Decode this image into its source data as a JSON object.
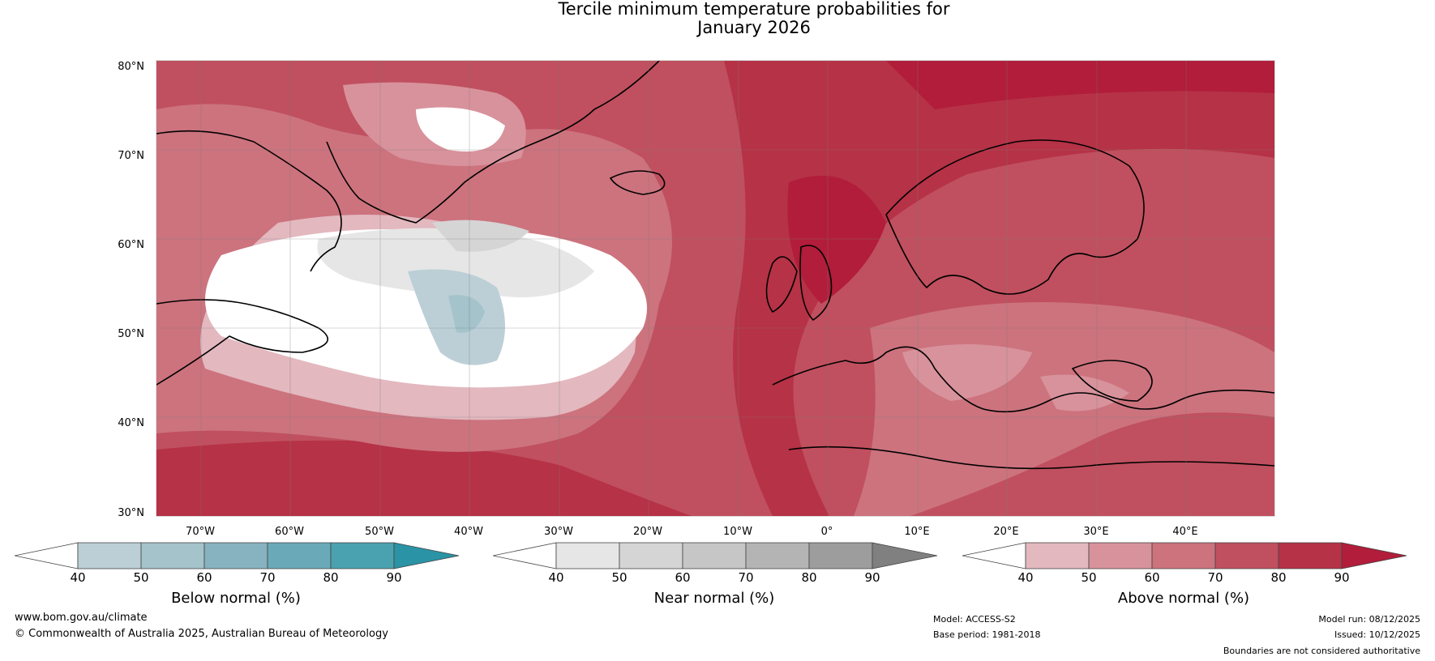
{
  "title": {
    "line1": "Tercile minimum temperature probabilities for",
    "line2": "January 2026"
  },
  "latitude_labels": [
    "80°N",
    "70°N",
    "60°N",
    "50°N",
    "40°N",
    "30°N"
  ],
  "longitude_labels": [
    "70°W",
    "60°W",
    "50°W",
    "40°W",
    "30°W",
    "20°W",
    "10°W",
    "0°",
    "10°E",
    "20°E",
    "30°E",
    "40°E"
  ],
  "colorbars": [
    {
      "title": "Below normal (%)",
      "ticks": [
        "40",
        "50",
        "60",
        "70",
        "80",
        "90"
      ],
      "colors": [
        "#ffffff",
        "#bccfd6",
        "#a4c3cb",
        "#87b2c0",
        "#6aaab8",
        "#4aa2b0",
        "#2a93a5"
      ]
    },
    {
      "title": "Near normal (%)",
      "ticks": [
        "40",
        "50",
        "60",
        "70",
        "80",
        "90"
      ],
      "colors": [
        "#ffffff",
        "#e6e6e6",
        "#d5d5d5",
        "#c6c6c6",
        "#b4b4b4",
        "#9d9d9d",
        "#808080"
      ]
    },
    {
      "title": "Above normal (%)",
      "ticks": [
        "40",
        "50",
        "60",
        "70",
        "80",
        "90"
      ],
      "colors": [
        "#ffffff",
        "#e3b8bf",
        "#d8929c",
        "#cc737e",
        "#c0505f",
        "#b63246",
        "#b11d3a"
      ]
    }
  ],
  "footer": {
    "website": "www.bom.gov.au/climate",
    "copyright": "© Commonwealth of Australia 2025, Australian Bureau of Meteorology",
    "model": "Model: ACCESS-S2",
    "base_period": "Base period: 1981-2018",
    "model_run": "Model run: 08/12/2025",
    "issued": "Issued: 10/12/2025",
    "disclaimer": "Boundaries are not considered authoritative"
  }
}
